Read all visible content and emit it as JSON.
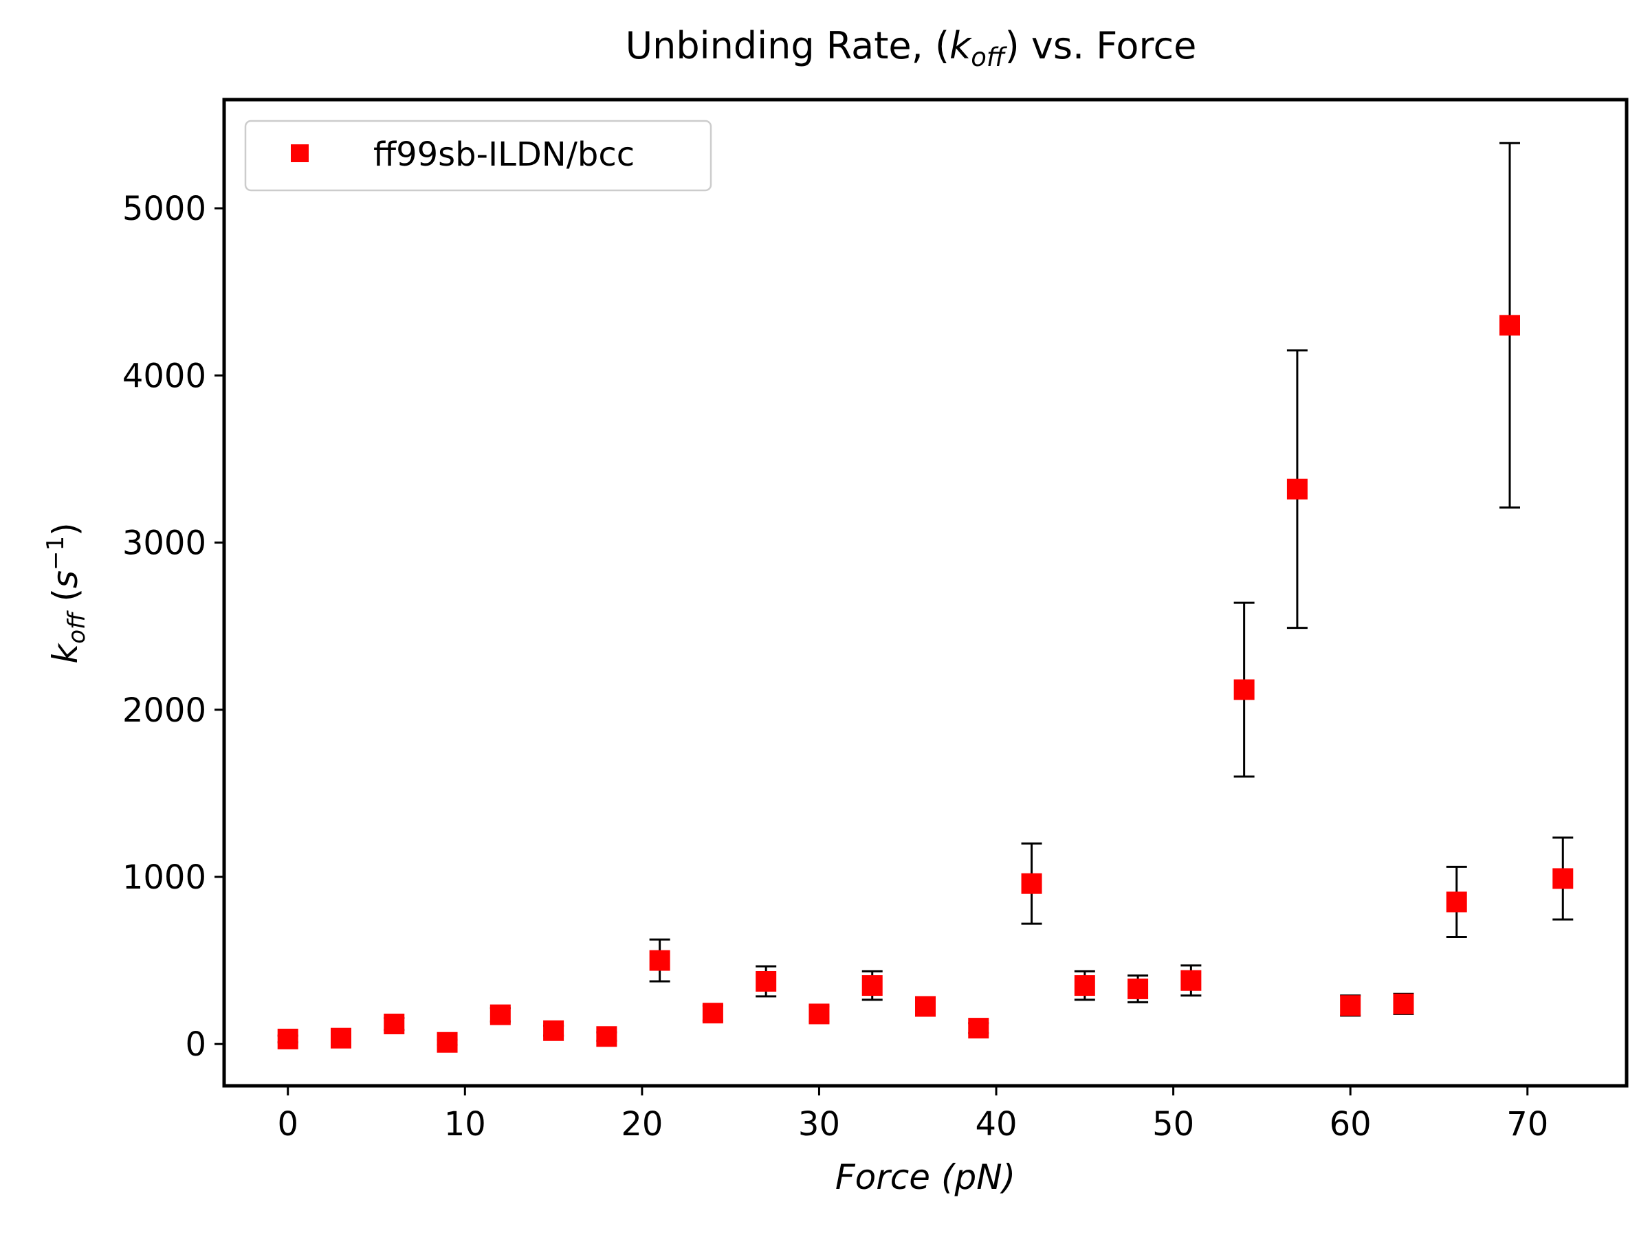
{
  "chart_data": {
    "type": "scatter",
    "title": "Unbinding Rate, (k_off) vs. Force",
    "title_parts": {
      "pre": "Unbinding Rate, (",
      "k": "k",
      "sub": "off",
      "post": ") vs. Force"
    },
    "xlabel": "Force (pN)",
    "ylabel": "k_off (s^-1)",
    "ylabel_parts": {
      "k": "k",
      "sub": "off",
      "unit_pre": " (",
      "s": "s",
      "sup": "−1",
      "unit_post": ")"
    },
    "xlim": [
      -3.6,
      75.6
    ],
    "ylim": [
      -250,
      5650
    ],
    "xticks": [
      0,
      10,
      20,
      30,
      40,
      50,
      60,
      70
    ],
    "yticks": [
      0,
      1000,
      2000,
      3000,
      4000,
      5000
    ],
    "grid": false,
    "legend": {
      "position": "top-left",
      "entries": [
        "ff99sb-ILDN/bcc"
      ]
    },
    "series": [
      {
        "name": "ff99sb-ILDN/bcc",
        "color": "#ff0000",
        "marker": "square",
        "errorbar_color": "#000000",
        "x": [
          0,
          3,
          6,
          9,
          12,
          15,
          18,
          21,
          24,
          27,
          30,
          33,
          36,
          39,
          42,
          45,
          48,
          51,
          54,
          57,
          60,
          63,
          66,
          69,
          72
        ],
        "y": [
          30,
          35,
          120,
          10,
          175,
          80,
          45,
          500,
          185,
          375,
          180,
          350,
          225,
          95,
          960,
          350,
          330,
          380,
          2120,
          3320,
          230,
          240,
          850,
          4300,
          990
        ],
        "err": [
          20,
          20,
          35,
          15,
          40,
          30,
          25,
          125,
          45,
          90,
          45,
          85,
          55,
          30,
          240,
          85,
          80,
          90,
          520,
          830,
          60,
          60,
          210,
          1090,
          245
        ]
      }
    ]
  }
}
